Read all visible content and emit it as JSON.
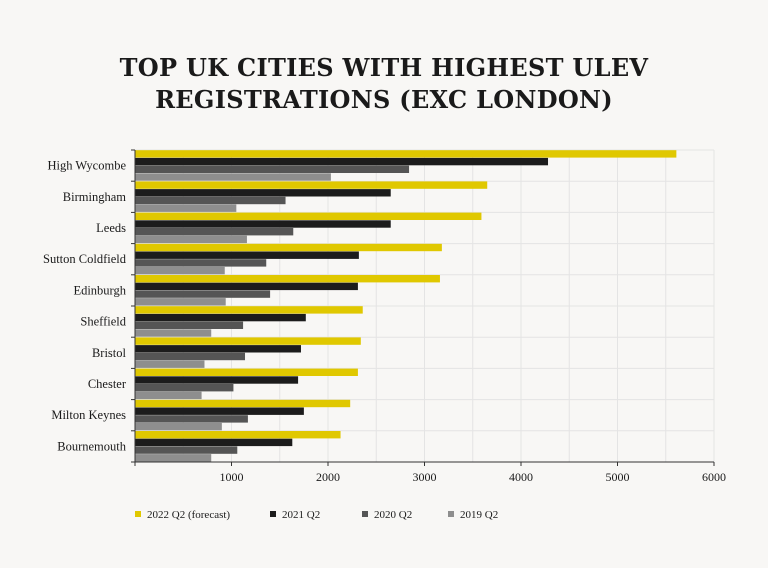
{
  "chart_data": {
    "type": "bar",
    "orientation": "horizontal",
    "title": "TOP UK CITIES WITH HIGHEST ULEV REGISTRATIONS (EXC LONDON)",
    "categories": [
      "High Wycombe",
      "Birmingham",
      "Leeds",
      "Sutton Coldfield",
      "Edinburgh",
      "Sheffield",
      "Bristol",
      "Chester",
      "Milton Keynes",
      "Bournemouth"
    ],
    "series": [
      {
        "name": "2022 Q2 (forecast)",
        "color": "#e0c800",
        "values": [
          5610,
          3650,
          3590,
          3180,
          3160,
          2360,
          2340,
          2310,
          2230,
          2130
        ]
      },
      {
        "name": "2021 Q2",
        "color": "#1c1c1c",
        "values": [
          4280,
          2650,
          2650,
          2320,
          2310,
          1770,
          1720,
          1690,
          1750,
          1630
        ]
      },
      {
        "name": "2020 Q2",
        "color": "#555555",
        "values": [
          2840,
          1560,
          1640,
          1360,
          1400,
          1120,
          1140,
          1020,
          1170,
          1060
        ]
      },
      {
        "name": "2019 Q2",
        "color": "#8e8e8e",
        "values": [
          2030,
          1050,
          1160,
          930,
          940,
          790,
          720,
          690,
          900,
          790
        ]
      }
    ],
    "x_ticks": [
      "1000",
      "2000",
      "3000",
      "4000",
      "5000",
      "6000"
    ],
    "xlim": [
      0,
      6000
    ],
    "grid": true,
    "legend_position": "bottom"
  }
}
